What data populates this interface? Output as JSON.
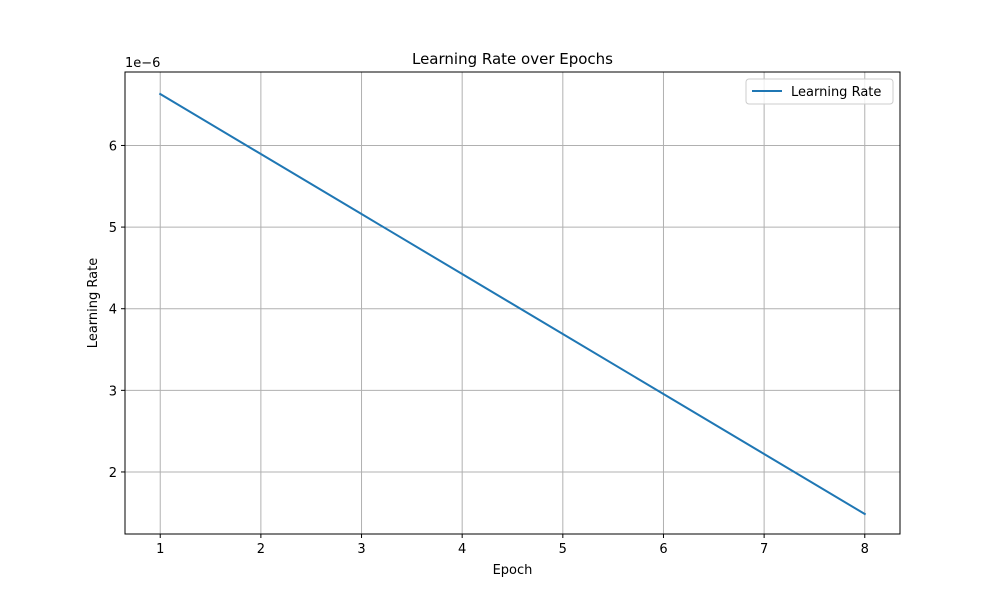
{
  "chart_data": {
    "type": "line",
    "title": "Learning Rate over Epochs",
    "xlabel": "Epoch",
    "ylabel": "Learning Rate",
    "y_offset_label": "1e−6",
    "y_scale_factor": 1e-06,
    "xlim": [
      0.65,
      8.35
    ],
    "ylim": [
      1.24,
      6.9
    ],
    "x_ticks": [
      1,
      2,
      3,
      4,
      5,
      6,
      7,
      8
    ],
    "y_ticks": [
      2,
      3,
      4,
      5,
      6
    ],
    "grid": true,
    "legend_position": "top-right",
    "series": [
      {
        "name": "Learning Rate",
        "color": "#1f77b4",
        "x": [
          1,
          2,
          3,
          4,
          5,
          6,
          7,
          8
        ],
        "y": [
          6.63e-06,
          5.895e-06,
          5.16e-06,
          4.425e-06,
          3.69e-06,
          2.955e-06,
          2.22e-06,
          1.485e-06
        ]
      }
    ]
  }
}
